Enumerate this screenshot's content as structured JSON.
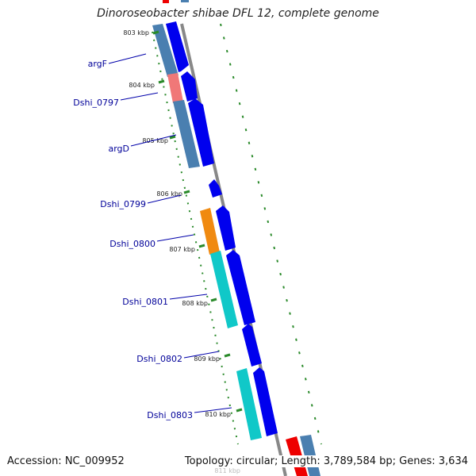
{
  "title": "Dinoroseobacter shibae DFL 12, complete genome",
  "footer": {
    "accession": "Accession: NC_009952",
    "stats": "Topology: circular; Length: 3,789,584 bp; Genes: 3,634"
  },
  "colors": {
    "cds_forward": "#0000ee",
    "backbone": "#888888",
    "tick": "#2a8a2a",
    "label_line": "#0000aa",
    "steelblue": "#4a7fb0",
    "pink": "#f07878",
    "orange": "#f08a10",
    "cyan": "#10c8c8",
    "red": "#ee0000"
  },
  "scale_ticks": [
    {
      "label": "803 kbp"
    },
    {
      "label": "804 kbp"
    },
    {
      "label": "805 kbp"
    },
    {
      "label": "806 kbp"
    },
    {
      "label": "807 kbp"
    },
    {
      "label": "808 kbp"
    },
    {
      "label": "809 kbp"
    },
    {
      "label": "810 kbp"
    },
    {
      "label": "811 kbp"
    }
  ],
  "genes": [
    {
      "name": "argF",
      "category_color": "steelblue"
    },
    {
      "name": "Dshi_0797",
      "category_color": "pink"
    },
    {
      "name": "argD",
      "category_color": "steelblue"
    },
    {
      "name": "Dshi_0799",
      "category_color": "none"
    },
    {
      "name": "Dshi_0800",
      "category_color": "orange"
    },
    {
      "name": "Dshi_0801",
      "category_color": "cyan"
    },
    {
      "name": "Dshi_0802",
      "category_color": "none"
    },
    {
      "name": "Dshi_0803",
      "category_color": "cyan"
    }
  ]
}
